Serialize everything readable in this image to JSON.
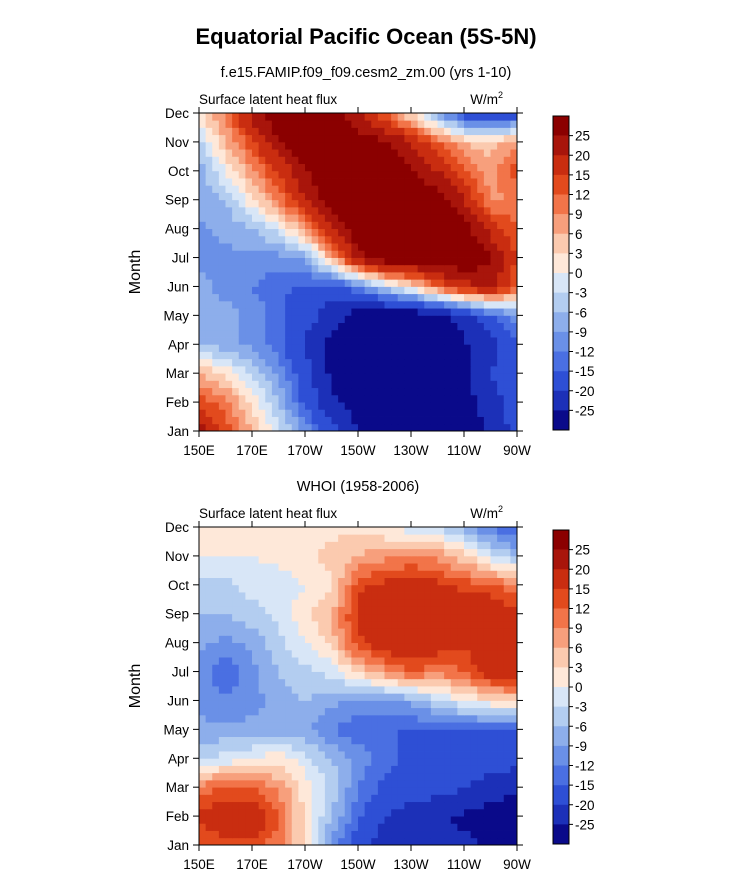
{
  "figure": {
    "title": "Equatorial Pacific Ocean (5S-5N)"
  },
  "colorbar": {
    "labels": [
      "25",
      "20",
      "15",
      "12",
      "9",
      "6",
      "3",
      "0",
      "-3",
      "-6",
      "-9",
      "-12",
      "-15",
      "-20",
      "-25"
    ],
    "colors": [
      "#8b0000",
      "#a8150b",
      "#c92d10",
      "#e24a1d",
      "#f27449",
      "#f79f7c",
      "#fbcaaf",
      "#fee8d9",
      "#d8e6f7",
      "#b3cdf0",
      "#8daeeb",
      "#6a90e7",
      "#4a6fe2",
      "#2e4fd5",
      "#1c30b8",
      "#0a0a8a"
    ]
  },
  "chart_data": [
    {
      "type": "heatmap",
      "title": "f.e15.FAMIP.f09_f09.cesm2_zm.00 (yrs 1-10)",
      "left_label": "Surface latent heat flux",
      "units_base": "W/m",
      "units_exp": "2",
      "xlabel": "",
      "ylabel": "Month",
      "x_ticks": [
        "150E",
        "170E",
        "170W",
        "150W",
        "130W",
        "110W",
        "90W"
      ],
      "x_values": [
        150,
        170,
        190,
        210,
        230,
        250,
        270
      ],
      "xlim": [
        150,
        270
      ],
      "y_ticks": [
        "Jan",
        "Feb",
        "Mar",
        "Apr",
        "May",
        "Jun",
        "Jul",
        "Aug",
        "Sep",
        "Oct",
        "Nov",
        "Dec"
      ],
      "y_values": [
        1,
        2,
        3,
        4,
        5,
        6,
        7,
        8,
        9,
        10,
        11,
        12
      ],
      "ylim": [
        1,
        12
      ],
      "grid": [
        [
          22,
          14,
          6,
          -2,
          -10,
          -18,
          -25,
          -28,
          -30,
          -30,
          -28,
          -24,
          -18
        ],
        [
          14,
          10,
          2,
          -6,
          -16,
          -24,
          -28,
          -30,
          -30,
          -30,
          -28,
          -22,
          -18
        ],
        [
          6,
          2,
          -4,
          -10,
          -18,
          -26,
          -30,
          -30,
          -30,
          -30,
          -26,
          -20,
          -16
        ],
        [
          -6,
          -8,
          -10,
          -14,
          -20,
          -28,
          -30,
          -30,
          -30,
          -30,
          -26,
          -22,
          -16
        ],
        [
          -8,
          -8,
          -10,
          -14,
          -18,
          -22,
          -28,
          -30,
          -30,
          -28,
          -22,
          -16,
          -10
        ],
        [
          -8,
          -10,
          -12,
          -14,
          -16,
          -18,
          -12,
          -4,
          2,
          12,
          18,
          22,
          12
        ],
        [
          -10,
          -10,
          -10,
          -10,
          -8,
          6,
          22,
          30,
          30,
          30,
          30,
          26,
          14
        ],
        [
          -10,
          -8,
          -6,
          -2,
          8,
          20,
          30,
          30,
          30,
          30,
          28,
          18,
          12
        ],
        [
          -8,
          -6,
          2,
          10,
          20,
          28,
          30,
          30,
          30,
          28,
          20,
          8,
          10
        ],
        [
          -8,
          0,
          8,
          16,
          24,
          30,
          30,
          30,
          26,
          20,
          12,
          8,
          14
        ],
        [
          -4,
          6,
          14,
          24,
          30,
          30,
          28,
          26,
          20,
          12,
          6,
          4,
          8
        ],
        [
          2,
          10,
          22,
          30,
          30,
          30,
          20,
          12,
          2,
          -8,
          -18,
          -22,
          -18
        ]
      ]
    },
    {
      "type": "heatmap",
      "title": "WHOI (1958-2006)",
      "left_label": "Surface latent heat flux",
      "units_base": "W/m",
      "units_exp": "2",
      "xlabel": "",
      "ylabel": "Month",
      "x_ticks": [
        "150E",
        "170E",
        "170W",
        "150W",
        "130W",
        "110W",
        "90W"
      ],
      "x_values": [
        150,
        170,
        190,
        210,
        230,
        250,
        270
      ],
      "xlim": [
        150,
        270
      ],
      "y_ticks": [
        "Jan",
        "Feb",
        "Mar",
        "Apr",
        "May",
        "Jun",
        "Jul",
        "Aug",
        "Sep",
        "Oct",
        "Nov",
        "Dec"
      ],
      "y_values": [
        1,
        2,
        3,
        4,
        5,
        6,
        7,
        8,
        9,
        10,
        11,
        12
      ],
      "ylim": [
        1,
        12
      ],
      "grid": [
        [
          12,
          14,
          14,
          10,
          2,
          -10,
          -18,
          -22,
          -22,
          -24,
          -24,
          -26,
          -26
        ],
        [
          16,
          18,
          20,
          12,
          2,
          -6,
          -14,
          -20,
          -22,
          -24,
          -26,
          -28,
          -28
        ],
        [
          10,
          12,
          12,
          8,
          2,
          -4,
          -12,
          -16,
          -18,
          -18,
          -20,
          -22,
          -24
        ],
        [
          -4,
          -2,
          0,
          2,
          -2,
          -6,
          -10,
          -14,
          -16,
          -16,
          -16,
          -18,
          -18
        ],
        [
          -8,
          -8,
          -8,
          -8,
          -8,
          -12,
          -14,
          -15,
          -15,
          -15,
          -15,
          -15,
          -15
        ],
        [
          -10,
          -12,
          -10,
          -8,
          -6,
          -8,
          -10,
          -10,
          -8,
          -4,
          0,
          2,
          4
        ],
        [
          -10,
          -14,
          -10,
          -6,
          -4,
          -2,
          4,
          8,
          12,
          10,
          12,
          18,
          20
        ],
        [
          -8,
          -10,
          -8,
          -4,
          0,
          4,
          14,
          18,
          20,
          18,
          16,
          18,
          16
        ],
        [
          -6,
          -6,
          -4,
          -2,
          2,
          6,
          16,
          18,
          16,
          16,
          18,
          20,
          16
        ],
        [
          -4,
          -4,
          -2,
          -2,
          0,
          2,
          14,
          16,
          16,
          16,
          14,
          12,
          10
        ],
        [
          0,
          0,
          0,
          1,
          2,
          4,
          6,
          8,
          10,
          8,
          4,
          -2,
          -6
        ],
        [
          1,
          1,
          1,
          1,
          2,
          2,
          2,
          0,
          -2,
          -4,
          -8,
          -12,
          -16
        ]
      ]
    }
  ]
}
